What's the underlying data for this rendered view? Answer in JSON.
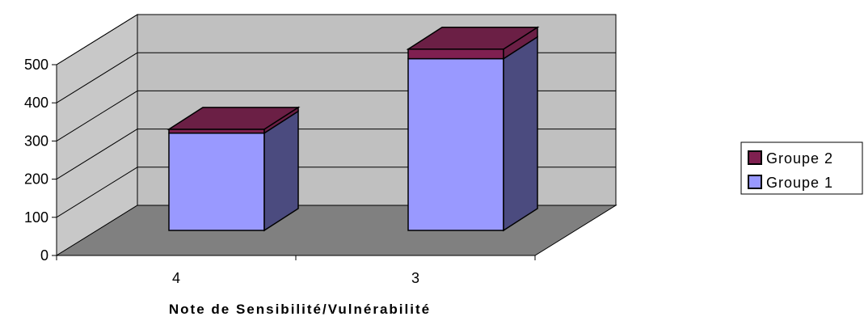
{
  "chart_data": {
    "type": "bar",
    "stacked": true,
    "three_d": true,
    "categories": [
      "4",
      "3"
    ],
    "series": [
      {
        "name": "Groupe 1",
        "values": [
          255,
          450
        ]
      },
      {
        "name": "Groupe 2",
        "values": [
          10,
          25
        ]
      }
    ],
    "title": "",
    "xlabel": "Note de Sensibilité/Vulnérabilité",
    "ylabel": "",
    "ylim": [
      0,
      500
    ],
    "yticks": [
      "0",
      "100",
      "200",
      "300",
      "400",
      "500"
    ],
    "grid": true,
    "legend_position": "right",
    "legend_order": [
      "Groupe 2",
      "Groupe 1"
    ],
    "colors": {
      "Groupe 1": "#9999ff",
      "Groupe 1 side": "#4b4b7f",
      "Groupe 2": "#7f2050",
      "Groupe 2 top": "#6b1f45",
      "back_wall": "#c0c0c0",
      "side_wall": "#c8c8c8",
      "floor": "#808080"
    }
  }
}
